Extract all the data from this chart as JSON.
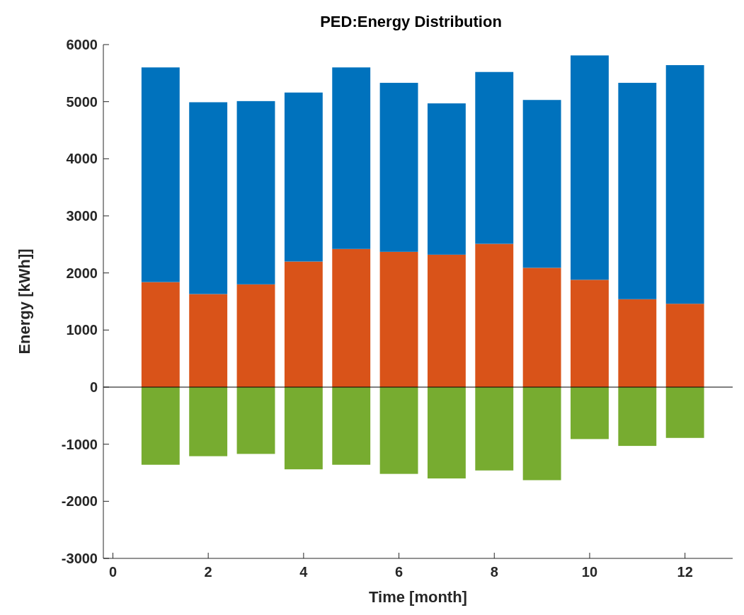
{
  "chart_data": {
    "type": "bar",
    "title": "PED:Energy Distribution",
    "xlabel": "Time [month]",
    "ylabel": "Energy [kWh]]",
    "x": [
      1,
      2,
      3,
      4,
      5,
      6,
      7,
      8,
      9,
      10,
      11,
      12
    ],
    "stacked": true,
    "series": [
      {
        "color": "#d95319",
        "values": [
          1840,
          1630,
          1800,
          2200,
          2420,
          2370,
          2320,
          2510,
          2090,
          1880,
          1540,
          1460
        ]
      },
      {
        "color": "#0072bd",
        "values": [
          3760,
          3360,
          3210,
          2960,
          3180,
          2960,
          2650,
          3010,
          2940,
          3930,
          3790,
          4180
        ]
      },
      {
        "color": "#77ac30",
        "values": [
          -1360,
          -1210,
          -1170,
          -1440,
          -1360,
          -1520,
          -1600,
          -1460,
          -1630,
          -910,
          -1030,
          -890
        ]
      }
    ],
    "xlim": [
      -0.2,
      13
    ],
    "xticks": [
      0,
      2,
      4,
      6,
      8,
      10,
      12
    ],
    "ylim": [
      -3000,
      6000
    ],
    "yticks": [
      -3000,
      -2000,
      -1000,
      0,
      1000,
      2000,
      3000,
      4000,
      5000,
      6000
    ],
    "ref_lines": [
      {
        "axis": "y",
        "value": 0,
        "color": "#000000"
      }
    ]
  }
}
